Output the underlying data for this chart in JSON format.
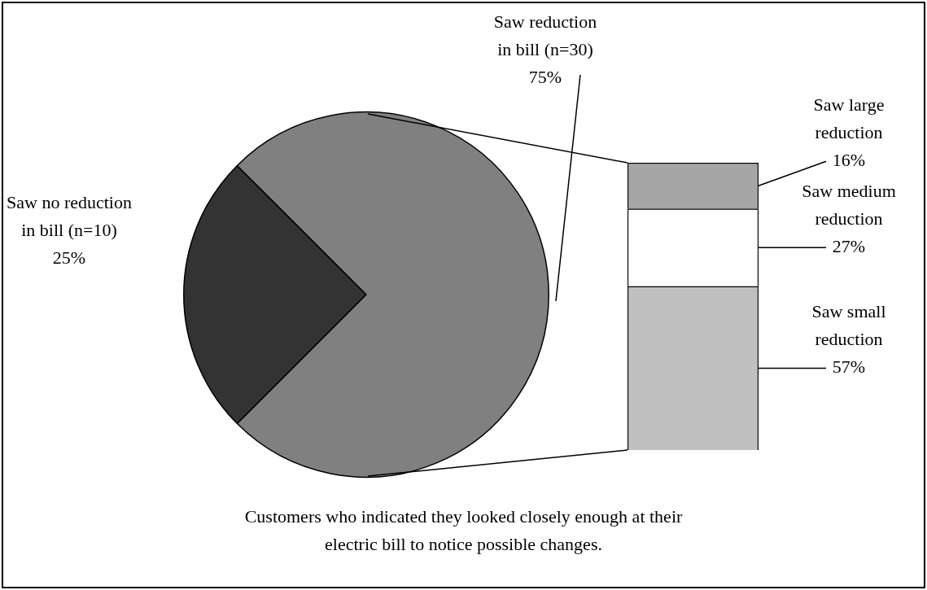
{
  "chart_data": [
    {
      "type": "pie",
      "categories": [
        "Saw no reduction in bill (n=10)",
        "Saw reduction in bill (n=30)"
      ],
      "values": [
        25,
        75
      ],
      "value_labels": [
        "25%",
        "75%"
      ],
      "colors": [
        "#333333",
        "#808080"
      ],
      "legend": false,
      "annotations": [
        "Customers who indicated they looked closely enough at their electric bill to notice possible changes."
      ]
    },
    {
      "type": "bar",
      "stacked": true,
      "categories": [
        null
      ],
      "tick_labels": false,
      "legend": false,
      "series": [
        {
          "name": "Saw small reduction",
          "color": "#c0c0c0",
          "values": [
            57
          ],
          "value_labels": [
            "57%"
          ]
        },
        {
          "name": "Saw medium reduction",
          "color": "#ffffff",
          "values": [
            27
          ],
          "value_labels": [
            "27%"
          ]
        },
        {
          "name": "Saw large reduction",
          "color": "#a6a6a6",
          "values": [
            16
          ],
          "value_labels": [
            "16%"
          ]
        }
      ]
    }
  ]
}
